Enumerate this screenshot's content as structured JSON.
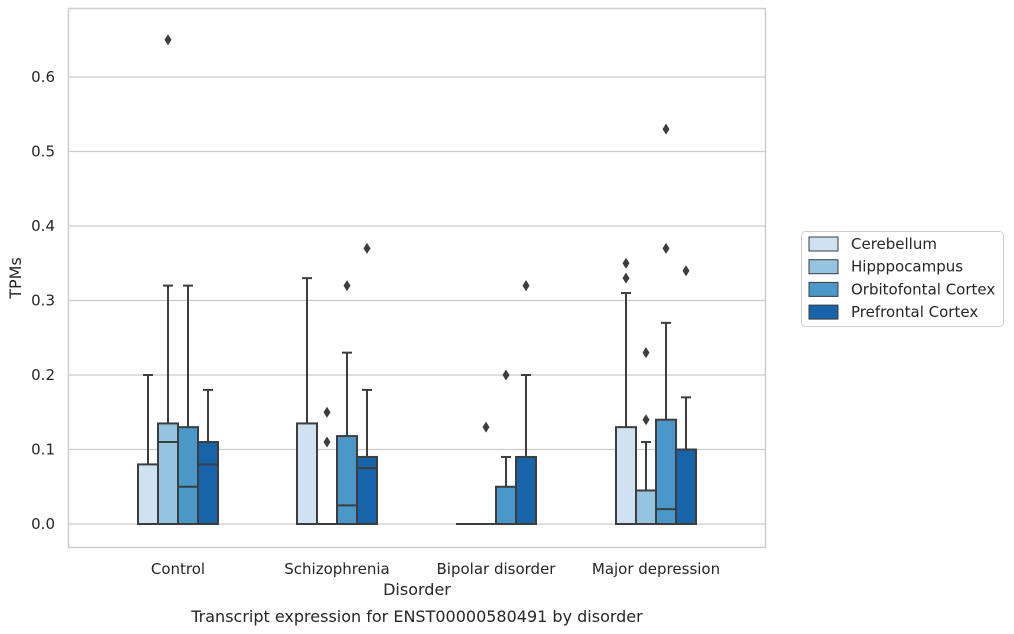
{
  "chart_data": {
    "type": "box",
    "caption": "Transcript expression for ENST00000580491 by disorder",
    "xlabel": "Disorder",
    "ylabel": "TPMs",
    "ylim": [
      -0.032,
      0.685
    ],
    "yticks": [
      0.0,
      0.1,
      0.2,
      0.3,
      0.4,
      0.5,
      0.6
    ],
    "ytick_labels": [
      "0.0",
      "0.1",
      "0.2",
      "0.3",
      "0.4",
      "0.5",
      "0.6"
    ],
    "grid": true,
    "legend_position": "right",
    "categories": [
      "Control",
      "Schizophrenia",
      "Bipolar disorder",
      "Major depression"
    ],
    "series": [
      {
        "name": "Cerebellum",
        "color": "#d0e1f2",
        "boxes": [
          {
            "q1": 0.0,
            "median": 0.0,
            "q3": 0.08,
            "whisker_low": 0.0,
            "whisker_high": 0.2,
            "outliers": []
          },
          {
            "q1": 0.0,
            "median": 0.0,
            "q3": 0.135,
            "whisker_low": 0.0,
            "whisker_high": 0.33,
            "outliers": []
          },
          {
            "q1": 0.0,
            "median": 0.0,
            "q3": 0.0,
            "whisker_low": 0.0,
            "whisker_high": 0.0,
            "outliers": []
          },
          {
            "q1": 0.0,
            "median": 0.0,
            "q3": 0.13,
            "whisker_low": 0.0,
            "whisker_high": 0.31,
            "outliers": [
              0.33,
              0.35
            ]
          }
        ]
      },
      {
        "name": "Hipppocampus",
        "color": "#94c4df",
        "boxes": [
          {
            "q1": 0.0,
            "median": 0.11,
            "q3": 0.135,
            "whisker_low": 0.0,
            "whisker_high": 0.32,
            "outliers": [
              0.65
            ]
          },
          {
            "q1": 0.0,
            "median": 0.0,
            "q3": 0.0,
            "whisker_low": 0.0,
            "whisker_high": 0.0,
            "outliers": [
              0.11,
              0.15
            ]
          },
          {
            "q1": 0.0,
            "median": 0.0,
            "q3": 0.0,
            "whisker_low": 0.0,
            "whisker_high": 0.0,
            "outliers": [
              0.13
            ]
          },
          {
            "q1": 0.0,
            "median": 0.0,
            "q3": 0.045,
            "whisker_low": 0.0,
            "whisker_high": 0.11,
            "outliers": [
              0.14,
              0.23
            ]
          }
        ]
      },
      {
        "name": "Orbitofontal Cortex",
        "color": "#4a98c9",
        "boxes": [
          {
            "q1": 0.0,
            "median": 0.05,
            "q3": 0.13,
            "whisker_low": 0.0,
            "whisker_high": 0.32,
            "outliers": []
          },
          {
            "q1": 0.0,
            "median": 0.025,
            "q3": 0.118,
            "whisker_low": 0.0,
            "whisker_high": 0.23,
            "outliers": [
              0.32
            ]
          },
          {
            "q1": 0.0,
            "median": 0.0,
            "q3": 0.05,
            "whisker_low": 0.0,
            "whisker_high": 0.09,
            "outliers": [
              0.2
            ]
          },
          {
            "q1": 0.0,
            "median": 0.02,
            "q3": 0.14,
            "whisker_low": 0.0,
            "whisker_high": 0.27,
            "outliers": [
              0.37,
              0.53
            ]
          }
        ]
      },
      {
        "name": "Prefrontal Cortex",
        "color": "#1764ab",
        "boxes": [
          {
            "q1": 0.0,
            "median": 0.08,
            "q3": 0.11,
            "whisker_low": 0.0,
            "whisker_high": 0.18,
            "outliers": []
          },
          {
            "q1": 0.0,
            "median": 0.075,
            "q3": 0.09,
            "whisker_low": 0.0,
            "whisker_high": 0.18,
            "outliers": [
              0.37
            ]
          },
          {
            "q1": 0.0,
            "median": 0.0,
            "q3": 0.09,
            "whisker_low": 0.0,
            "whisker_high": 0.2,
            "outliers": [
              0.32
            ]
          },
          {
            "q1": 0.0,
            "median": 0.0,
            "q3": 0.1,
            "whisker_low": 0.0,
            "whisker_high": 0.17,
            "outliers": [
              0.34
            ]
          }
        ]
      }
    ]
  }
}
